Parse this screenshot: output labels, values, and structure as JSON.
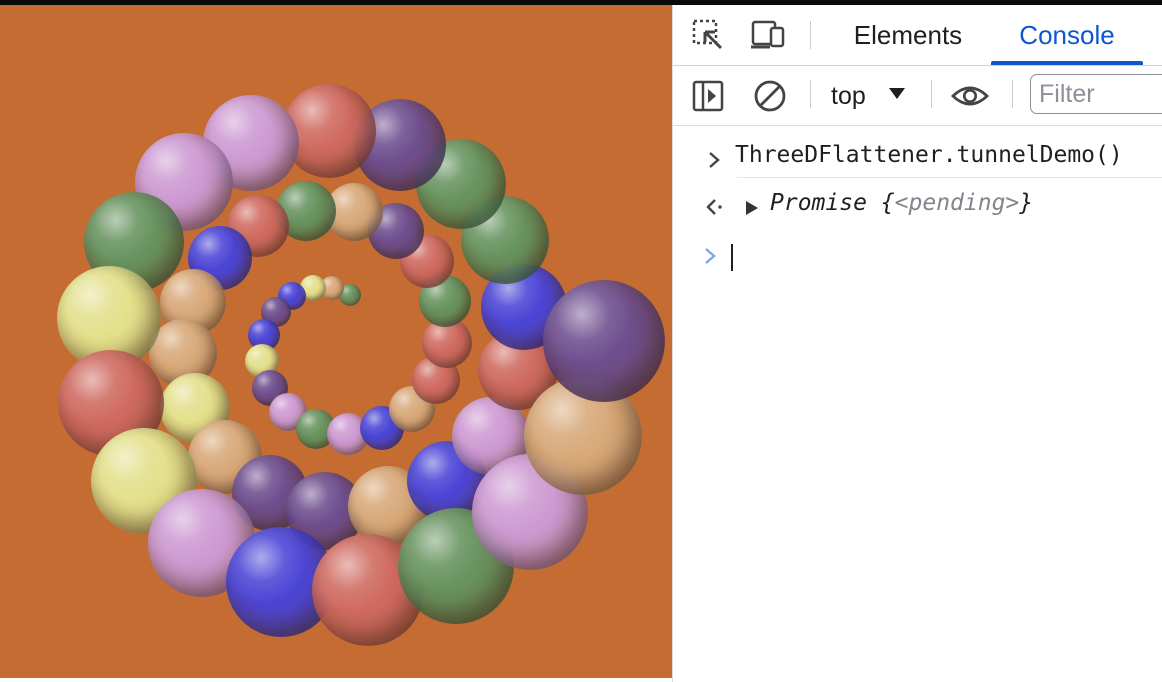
{
  "page": {
    "canvas_background": "#c46c32"
  },
  "devtools": {
    "tabs": [
      {
        "label": "Elements",
        "active": false
      },
      {
        "label": "Console",
        "active": true
      }
    ],
    "toolbar_icons": [
      "inspect-element-icon",
      "device-toggle-icon"
    ],
    "console_toolbar": {
      "sidebar_icon": "sidebar-toggle-icon",
      "clear_icon": "clear-console-icon",
      "context": "top",
      "eye_icon": "live-expression-icon",
      "filter_placeholder": "Filter"
    },
    "console": {
      "command": "ThreeDFlattener.tunnelDemo()",
      "result_prefix": "Promise",
      "result_open": "{",
      "result_state": "<pending>",
      "result_close": "}"
    },
    "accent_color": "#0b57d0"
  },
  "sphere_palette": {
    "red": "#cf6a60",
    "green": "#67935f",
    "purple": "#6e4e8e",
    "lilac": "#cd9ad2",
    "tan": "#d8a97a",
    "yellow": "#e3e08c",
    "blue": "#4b45d6"
  }
}
